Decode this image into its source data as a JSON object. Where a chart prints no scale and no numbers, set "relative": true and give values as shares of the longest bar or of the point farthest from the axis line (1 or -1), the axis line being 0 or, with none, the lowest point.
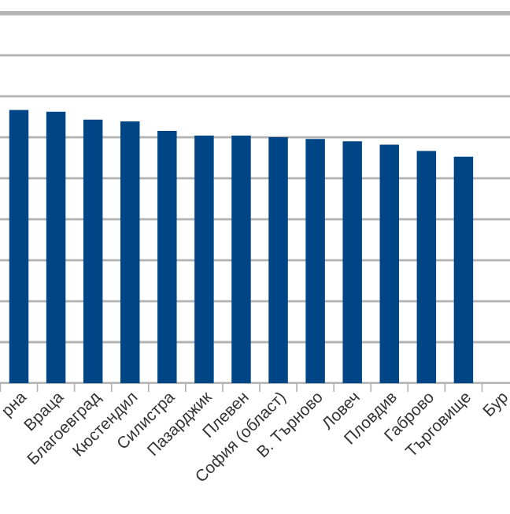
{
  "chart_data": {
    "type": "bar",
    "relative": true,
    "grid": "y",
    "color": "#004586",
    "categories": [
      "рна",
      "Враца",
      "Благоевград",
      "Кюстендил",
      "Силистра",
      "Пазарджик",
      "Плевен",
      "София (област)",
      "В. Търново",
      "Ловеч",
      "Пловдив",
      "Габрово",
      "Търговище",
      "Бур"
    ],
    "values": [
      1,
      0.993,
      0.964,
      0.958,
      0.923,
      0.906,
      0.906,
      0.9,
      0.894,
      0.885,
      0.873,
      0.85,
      0.829,
      null
    ]
  }
}
